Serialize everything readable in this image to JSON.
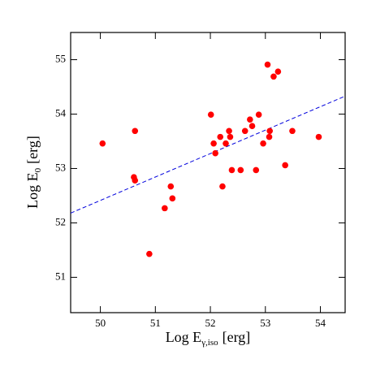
{
  "chart_data": {
    "type": "scatter",
    "xlabel": "Log E",
    "xlabel_sub": "γ,iso",
    "xlabel_unit": "[erg]",
    "ylabel": "Log E",
    "ylabel_sub": "0",
    "ylabel_unit": "[erg]",
    "xlim": [
      49.46,
      54.45
    ],
    "ylim": [
      50.35,
      55.5
    ],
    "xticks": [
      50,
      51,
      52,
      53,
      54
    ],
    "yticks": [
      51,
      52,
      53,
      54,
      55
    ],
    "color": "#ff0000",
    "x": [
      50.04,
      50.63,
      50.61,
      50.63,
      50.89,
      51.17,
      51.28,
      51.31,
      52.01,
      52.06,
      52.09,
      52.18,
      52.22,
      52.28,
      52.34,
      52.36,
      52.39,
      52.55,
      52.63,
      52.72,
      52.76,
      52.83,
      52.88,
      52.96,
      53.04,
      53.07,
      53.08,
      53.15,
      53.23,
      53.36,
      53.49,
      53.97
    ],
    "values": [
      53.46,
      53.69,
      52.84,
      52.78,
      51.43,
      52.27,
      52.67,
      52.45,
      53.99,
      53.46,
      53.28,
      53.58,
      52.67,
      53.46,
      53.69,
      53.58,
      52.97,
      52.97,
      53.69,
      53.9,
      53.78,
      52.97,
      53.99,
      53.46,
      54.91,
      53.58,
      53.69,
      54.69,
      54.78,
      53.06,
      53.69,
      53.58
    ],
    "fit_line": {
      "x": [
        49.46,
        54.45
      ],
      "y": [
        52.18,
        54.33
      ],
      "color": "#0000dd"
    }
  }
}
